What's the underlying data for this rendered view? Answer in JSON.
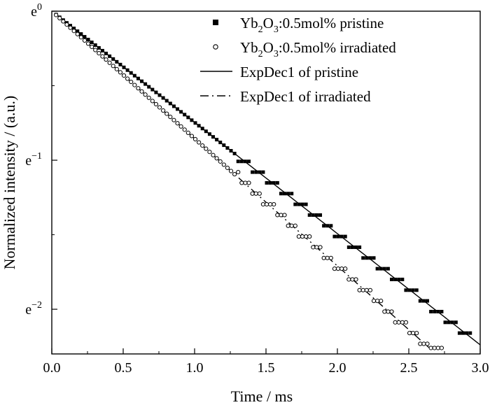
{
  "chart_data": {
    "type": "scatter",
    "xlabel": "Time / ms",
    "ylabel": "Normalized intensity / (a.u.)",
    "y_scale": "log",
    "xlim": [
      0.0,
      3.0
    ],
    "ylim_ln": [
      -2.3,
      0.0
    ],
    "xticks": [
      0.0,
      0.5,
      1.0,
      1.5,
      2.0,
      2.5,
      3.0
    ],
    "xtick_labels": [
      "0.0",
      "0.5",
      "1.0",
      "1.5",
      "2.0",
      "2.5",
      "3.0"
    ],
    "yticks": [
      {
        "ln": 0,
        "base": "e",
        "exp": "0"
      },
      {
        "ln": -1,
        "base": "e",
        "exp": "−1"
      },
      {
        "ln": -2,
        "base": "e",
        "exp": "−2"
      }
    ],
    "legend_position": "top-right",
    "legend": [
      {
        "label_main": "Yb",
        "sub1": "2",
        "mid": "O",
        "sub2": "3",
        "rest": ":0.5mol% pristine",
        "marker": "square"
      },
      {
        "label_main": "Yb",
        "sub1": "2",
        "mid": "O",
        "sub2": "3",
        "rest": ":0.5mol% irradiated",
        "marker": "circle"
      },
      {
        "label": "ExpDec1 of pristine",
        "marker": "solid"
      },
      {
        "label": "ExpDec1 of irradiated",
        "marker": "dashdot"
      }
    ],
    "series": [
      {
        "name": "Yb2O3:0.5mol% pristine",
        "marker": "square",
        "decay_time_ms": 1.34,
        "x_range": [
          0.03,
          2.93
        ]
      },
      {
        "name": "Yb2O3:0.5mol% irradiated",
        "marker": "circle",
        "decay_time_ms": 1.17,
        "x_range": [
          0.03,
          2.74
        ]
      },
      {
        "name": "ExpDec1 of pristine",
        "style": "solid",
        "decay_time_ms": 1.34,
        "x_range": [
          0.08,
          3.0
        ]
      },
      {
        "name": "ExpDec1 of irradiated",
        "style": "dashdot",
        "decay_time_ms": 1.17,
        "x_range": [
          0.08,
          2.64
        ]
      }
    ]
  }
}
